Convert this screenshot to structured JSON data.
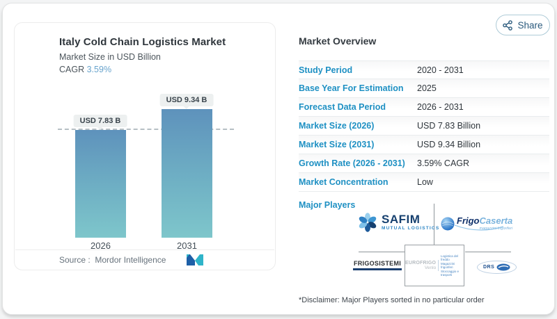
{
  "share": {
    "label": "Share"
  },
  "chart_card": {
    "title": "Italy Cold Chain Logistics Market",
    "subtitle": "Market Size in USD Billion",
    "cagr_label": "CAGR",
    "cagr_value": "3.59%",
    "source_label": "Source :",
    "source_value": "Mordor Intelligence"
  },
  "chart_data": {
    "type": "bar",
    "title": "Italy Cold Chain Logistics Market",
    "ylabel": "Market Size in USD Billion",
    "categories": [
      "2026",
      "2031"
    ],
    "values": [
      7.83,
      9.34
    ],
    "value_labels": [
      "USD 7.83 B",
      "USD 9.34 B"
    ],
    "reference_line": 7.83,
    "legend": "none",
    "grid": "off",
    "bar_gradient": [
      "#5e92bc",
      "#7ec6cb"
    ]
  },
  "overview": {
    "heading": "Market Overview",
    "rows": [
      {
        "label": "Study Period",
        "value": "2020 - 2031"
      },
      {
        "label": "Base Year For Estimation",
        "value": "2025"
      },
      {
        "label": "Forecast Data Period",
        "value": "2026 - 2031"
      },
      {
        "label": "Market Size (2026)",
        "value": "USD 7.83 Billion"
      },
      {
        "label": "Market Size (2031)",
        "value": "USD 9.34 Billion"
      },
      {
        "label": "Growth Rate (2026 - 2031)",
        "value": "3.59% CAGR"
      },
      {
        "label": "Market Concentration",
        "value": "Low"
      }
    ],
    "major_players_label": "Major Players",
    "disclaimer": "*Disclaimer: Major Players sorted in no particular order"
  },
  "players": {
    "safim": {
      "name": "SAFIM",
      "tagline": "MUTUAL LOGISTICS"
    },
    "frigocaserta": {
      "name_bold": "Frigo",
      "name_light": "Caserta",
      "tagline": "magazzini frigoriferi"
    },
    "frigosistemi": {
      "name": "FRIGOSISTEMI"
    },
    "eurofrigo": {
      "name": "EUROFRIGO",
      "location": "Venlo",
      "lines": [
        "Logistica del freddo",
        "Magazzini frigoriferi",
        "Stoccaggio e trasporti"
      ]
    },
    "drs": {
      "name": "DRS"
    }
  },
  "colors": {
    "accent_blue": "#1e90c3",
    "cagr_blue": "#69a4cd",
    "bar_top": "#5e92bc",
    "bar_bottom": "#7ec6cb",
    "navy": "#16406f",
    "teal": "#2fb4c9"
  }
}
